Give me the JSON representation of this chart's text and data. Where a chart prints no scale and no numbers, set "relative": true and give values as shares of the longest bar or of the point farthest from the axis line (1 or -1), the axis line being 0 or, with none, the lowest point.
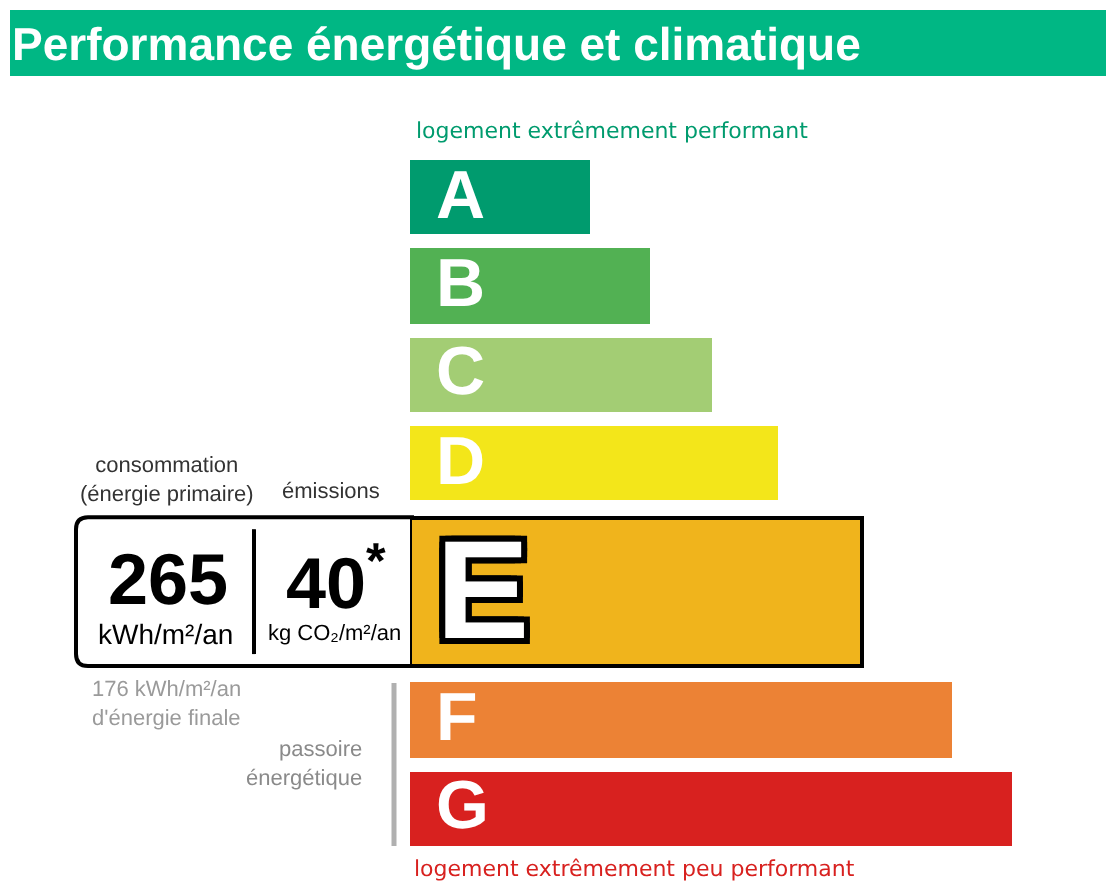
{
  "chart_data": {
    "type": "bar",
    "orientation": "horizontal",
    "relative": true,
    "title": "Performance énergétique et climatique",
    "categories": [
      "A",
      "B",
      "C",
      "D",
      "E",
      "F",
      "G"
    ],
    "values": [
      0.3,
      0.4,
      0.5,
      0.61,
      0.75,
      0.9,
      1.0
    ],
    "colors": [
      "#009b6e",
      "#52b153",
      "#a3cd74",
      "#f3e61a",
      "#f0b41c",
      "#ec8235",
      "#d8211f"
    ],
    "needle": "E",
    "annotations": [
      "logement extrêmement performant",
      "consommation\n(énergie primaire)",
      "émissions",
      "265",
      "kWh/m²/an",
      "40$^{*}$",
      "kg CO₂/m²/an",
      "176 kWh/m²/an\nd'énergie finale",
      "passoire\nénergétique",
      "logement extrêmement peu performant"
    ]
  }
}
